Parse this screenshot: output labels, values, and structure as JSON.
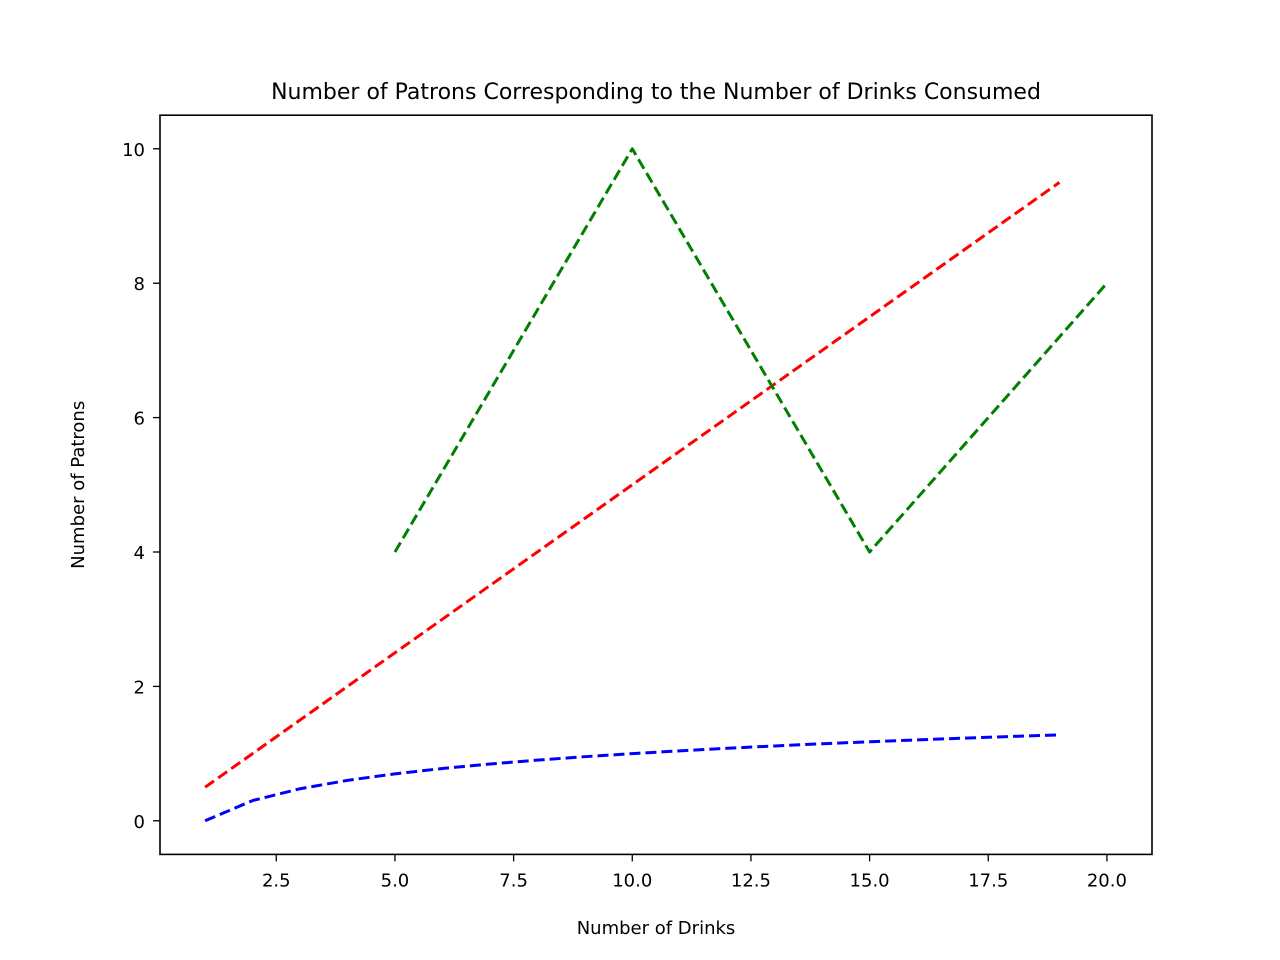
{
  "chart_data": {
    "type": "line",
    "title": "Number of Patrons Corresponding to the Number of Drinks Consumed",
    "xlabel": "Number of Drinks",
    "ylabel": "Number of Patrons",
    "xlim": [
      0.05,
      20.95
    ],
    "ylim": [
      -0.5,
      10.5
    ],
    "xticks": [
      2.5,
      5.0,
      7.5,
      10.0,
      12.5,
      15.0,
      17.5,
      20.0
    ],
    "xtick_labels": [
      "2.5",
      "5.0",
      "7.5",
      "10.0",
      "12.5",
      "15.0",
      "17.5",
      "20.0"
    ],
    "yticks": [
      0,
      2,
      4,
      6,
      8,
      10
    ],
    "ytick_labels": [
      "0",
      "2",
      "4",
      "6",
      "8",
      "10"
    ],
    "grid": false,
    "series": [
      {
        "color": "#0000ff",
        "line_style": "dashed",
        "x": [
          1,
          2,
          3,
          4,
          5,
          6,
          7,
          8,
          9,
          10,
          11,
          12,
          13,
          14,
          15,
          16,
          17,
          18,
          19
        ],
        "y": [
          0,
          0.301,
          0.477,
          0.602,
          0.699,
          0.778,
          0.845,
          0.903,
          0.954,
          1.0,
          1.041,
          1.079,
          1.114,
          1.146,
          1.176,
          1.204,
          1.23,
          1.255,
          1.279
        ]
      },
      {
        "color": "#ff0000",
        "line_style": "dashed",
        "x": [
          1,
          19
        ],
        "y": [
          0.5,
          9.5
        ]
      },
      {
        "color": "#008000",
        "line_style": "dashed",
        "x": [
          5,
          10,
          15,
          20
        ],
        "y": [
          4,
          10,
          4,
          8
        ]
      }
    ]
  }
}
